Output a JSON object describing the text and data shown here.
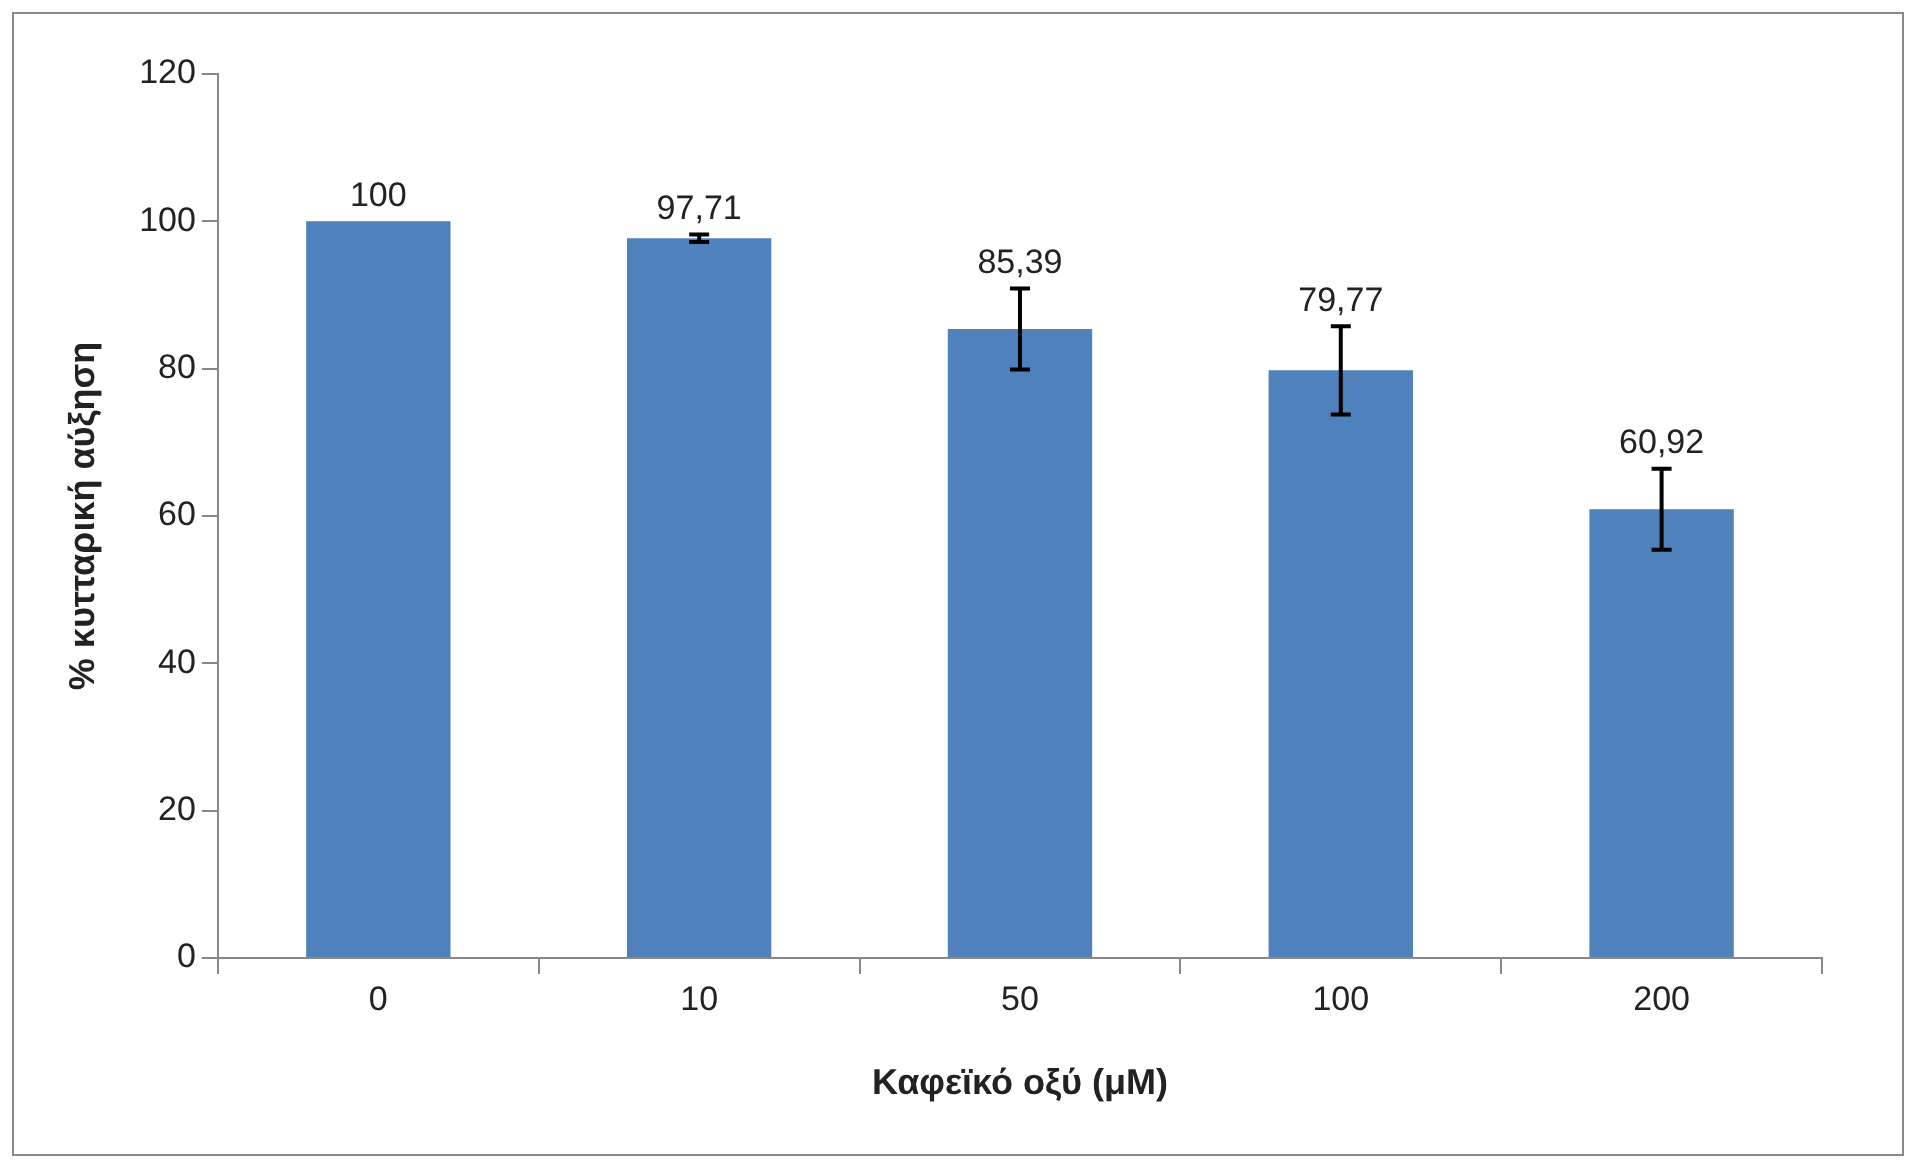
{
  "chart_data": {
    "type": "bar",
    "xlabel": "Καφεϊκό οξύ (μM)",
    "ylabel": "% κυτταρική αύξηση",
    "categories": [
      "0",
      "10",
      "50",
      "100",
      "200"
    ],
    "values": [
      100,
      97.71,
      85.39,
      79.77,
      60.92
    ],
    "value_labels": [
      "100",
      "97,71",
      "85,39",
      "79,77",
      "60,92"
    ],
    "errors": [
      null,
      0.5,
      5.5,
      6,
      5.5
    ],
    "color": "#4f81bd",
    "ylim": [
      0,
      120
    ],
    "yticks": [
      0,
      20,
      40,
      60,
      80,
      100,
      120
    ],
    "grid": false
  }
}
